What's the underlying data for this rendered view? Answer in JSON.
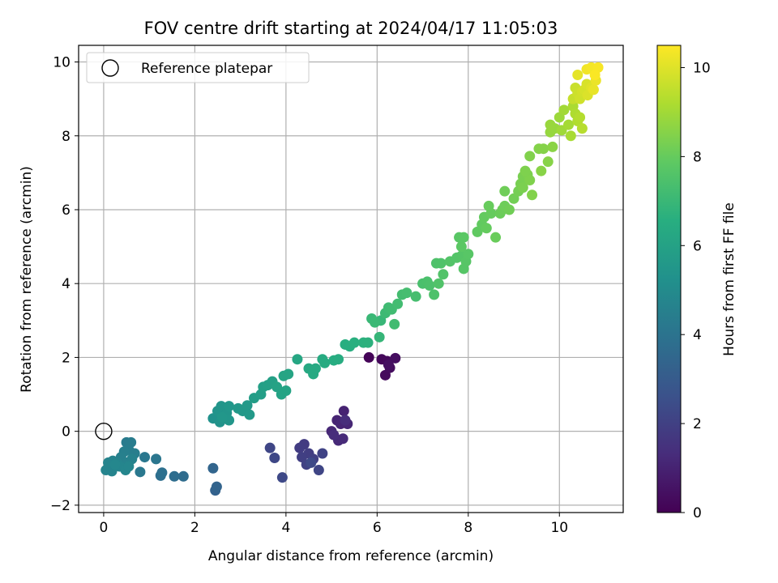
{
  "chart_data": {
    "type": "scatter",
    "title": "FOV centre drift starting at 2024/04/17 11:05:03",
    "xlabel": "Angular distance from reference (arcmin)",
    "ylabel": "Rotation from reference (arcmin)",
    "xlim": [
      -0.55,
      11.4
    ],
    "ylim": [
      -2.2,
      10.45
    ],
    "xticks": [
      "0",
      "2",
      "4",
      "6",
      "8",
      "10"
    ],
    "yticks": [
      "−2",
      "0",
      "2",
      "4",
      "6",
      "8",
      "10"
    ],
    "xtick_values": [
      0,
      2,
      4,
      6,
      8,
      10
    ],
    "ytick_values": [
      -2,
      0,
      2,
      4,
      6,
      8,
      10
    ],
    "grid": true,
    "legend": {
      "position": "upper-left",
      "entries": [
        "Reference platepar"
      ]
    },
    "reference_point": {
      "x": 0,
      "y": 0
    },
    "colorbar": {
      "label": "Hours from first FF file",
      "range": [
        0,
        10.5
      ],
      "ticks": [
        "0",
        "2",
        "4",
        "6",
        "8",
        "10"
      ],
      "tick_values": [
        0,
        2,
        4,
        6,
        8,
        10
      ],
      "colormap": "viridis"
    },
    "points": [
      [
        5.82,
        2.0,
        0.1
      ],
      [
        6.1,
        1.95,
        0.2
      ],
      [
        6.22,
        1.9,
        0.25
      ],
      [
        6.18,
        1.52,
        0.3
      ],
      [
        6.28,
        1.72,
        0.35
      ],
      [
        6.4,
        1.98,
        0.4
      ],
      [
        6.25,
        1.8,
        0.45
      ],
      [
        5.27,
        0.55,
        1.0
      ],
      [
        5.12,
        0.3,
        1.05
      ],
      [
        5.2,
        0.2,
        1.1
      ],
      [
        5.35,
        0.2,
        1.12
      ],
      [
        5.0,
        0.0,
        1.15
      ],
      [
        5.15,
        -0.25,
        1.2
      ],
      [
        5.25,
        -0.2,
        1.25
      ],
      [
        5.05,
        -0.1,
        1.3
      ],
      [
        5.3,
        0.3,
        1.35
      ],
      [
        4.4,
        -0.35,
        1.8
      ],
      [
        4.3,
        -0.45,
        1.85
      ],
      [
        4.5,
        -0.6,
        1.9
      ],
      [
        4.35,
        -0.7,
        1.95
      ],
      [
        4.6,
        -0.75,
        2.0
      ],
      [
        4.45,
        -0.9,
        2.05
      ],
      [
        4.8,
        -0.6,
        2.1
      ],
      [
        4.72,
        -1.05,
        2.15
      ],
      [
        3.65,
        -0.45,
        2.2
      ],
      [
        3.75,
        -0.72,
        2.25
      ],
      [
        3.92,
        -1.25,
        2.3
      ],
      [
        4.55,
        -0.85,
        2.35
      ],
      [
        2.45,
        -1.6,
        3.3
      ],
      [
        2.48,
        -1.5,
        3.35
      ],
      [
        2.4,
        -1.0,
        3.4
      ],
      [
        1.75,
        -1.22,
        3.7
      ],
      [
        1.55,
        -1.22,
        3.75
      ],
      [
        1.25,
        -1.2,
        3.8
      ],
      [
        1.28,
        -1.12,
        3.85
      ],
      [
        1.15,
        -0.75,
        4.1
      ],
      [
        0.9,
        -0.7,
        4.15
      ],
      [
        0.8,
        -1.1,
        4.2
      ],
      [
        0.5,
        -0.3,
        4.3
      ],
      [
        0.6,
        -0.3,
        4.35
      ],
      [
        0.55,
        -0.5,
        4.4
      ],
      [
        0.68,
        -0.6,
        4.45
      ],
      [
        0.45,
        -0.55,
        4.5
      ],
      [
        0.38,
        -0.7,
        4.55
      ],
      [
        0.62,
        -0.75,
        4.6
      ],
      [
        0.52,
        -0.85,
        4.6
      ],
      [
        0.3,
        -0.85,
        4.65
      ],
      [
        0.2,
        -0.8,
        4.65
      ],
      [
        0.1,
        -0.85,
        4.7
      ],
      [
        0.05,
        -1.05,
        4.7
      ],
      [
        0.18,
        -1.08,
        4.72
      ],
      [
        0.35,
        -0.95,
        4.75
      ],
      [
        0.48,
        -1.05,
        4.78
      ],
      [
        0.55,
        -0.95,
        4.8
      ],
      [
        0.25,
        -0.9,
        4.82
      ],
      [
        2.4,
        0.35,
        5.3
      ],
      [
        2.55,
        0.25,
        5.35
      ],
      [
        2.5,
        0.55,
        5.4
      ],
      [
        2.58,
        0.68,
        5.42
      ],
      [
        2.7,
        0.5,
        5.45
      ],
      [
        2.75,
        0.3,
        5.48
      ],
      [
        2.6,
        0.38,
        5.5
      ],
      [
        2.75,
        0.68,
        5.52
      ],
      [
        2.95,
        0.62,
        5.55
      ],
      [
        3.05,
        0.55,
        5.58
      ],
      [
        3.15,
        0.7,
        5.6
      ],
      [
        3.2,
        0.45,
        5.62
      ],
      [
        3.3,
        0.9,
        5.8
      ],
      [
        3.45,
        1.0,
        5.85
      ],
      [
        3.5,
        1.2,
        5.9
      ],
      [
        3.6,
        1.25,
        5.92
      ],
      [
        3.7,
        1.35,
        5.95
      ],
      [
        3.8,
        1.2,
        6.0
      ],
      [
        3.9,
        1.0,
        6.05
      ],
      [
        4.0,
        1.1,
        6.08
      ],
      [
        3.95,
        1.5,
        6.1
      ],
      [
        4.05,
        1.55,
        6.12
      ],
      [
        4.25,
        1.95,
        6.2
      ],
      [
        4.5,
        1.7,
        6.3
      ],
      [
        4.6,
        1.55,
        6.32
      ],
      [
        4.65,
        1.7,
        6.35
      ],
      [
        4.8,
        1.95,
        6.4
      ],
      [
        4.85,
        1.85,
        6.42
      ],
      [
        5.05,
        1.92,
        6.45
      ],
      [
        5.15,
        1.95,
        6.48
      ],
      [
        5.3,
        2.35,
        6.55
      ],
      [
        5.4,
        2.3,
        6.58
      ],
      [
        5.5,
        2.4,
        6.6
      ],
      [
        5.7,
        2.4,
        6.65
      ],
      [
        5.8,
        2.4,
        6.68
      ],
      [
        6.05,
        2.55,
        6.9
      ],
      [
        6.08,
        3.0,
        6.95
      ],
      [
        5.88,
        3.05,
        7.0
      ],
      [
        5.95,
        2.95,
        7.05
      ],
      [
        6.18,
        3.2,
        7.1
      ],
      [
        6.25,
        3.35,
        7.15
      ],
      [
        6.32,
        3.3,
        7.18
      ],
      [
        6.38,
        2.9,
        7.2
      ],
      [
        6.45,
        3.45,
        7.22
      ],
      [
        6.55,
        3.7,
        7.25
      ],
      [
        6.65,
        3.75,
        7.28
      ],
      [
        6.85,
        3.65,
        7.3
      ],
      [
        7.0,
        4.0,
        7.4
      ],
      [
        7.1,
        4.05,
        7.42
      ],
      [
        7.15,
        3.95,
        7.45
      ],
      [
        7.25,
        3.7,
        7.48
      ],
      [
        7.3,
        4.55,
        7.5
      ],
      [
        7.4,
        4.55,
        7.52
      ],
      [
        7.35,
        4.0,
        7.55
      ],
      [
        7.45,
        4.25,
        7.58
      ],
      [
        7.6,
        4.6,
        7.6
      ],
      [
        7.75,
        4.7,
        7.62
      ],
      [
        7.85,
        4.75,
        7.65
      ],
      [
        7.9,
        4.4,
        7.68
      ],
      [
        7.95,
        4.6,
        7.7
      ],
      [
        8.0,
        4.8,
        7.72
      ],
      [
        7.8,
        5.25,
        7.75
      ],
      [
        7.9,
        5.25,
        7.78
      ],
      [
        7.85,
        5.0,
        7.8
      ],
      [
        8.2,
        5.4,
        7.9
      ],
      [
        8.3,
        5.6,
        7.92
      ],
      [
        8.35,
        5.8,
        7.95
      ],
      [
        8.4,
        5.5,
        7.98
      ],
      [
        8.5,
        5.9,
        8.0
      ],
      [
        8.45,
        6.1,
        8.02
      ],
      [
        8.6,
        5.25,
        8.05
      ],
      [
        8.7,
        5.9,
        8.08
      ],
      [
        8.75,
        6.0,
        8.1
      ],
      [
        8.8,
        6.1,
        8.12
      ],
      [
        8.8,
        6.5,
        8.15
      ],
      [
        8.9,
        6.0,
        8.18
      ],
      [
        9.0,
        6.3,
        8.2
      ],
      [
        9.1,
        6.5,
        8.25
      ],
      [
        9.15,
        6.7,
        8.3
      ],
      [
        9.2,
        6.9,
        8.32
      ],
      [
        9.2,
        6.6,
        8.35
      ],
      [
        9.3,
        6.95,
        8.38
      ],
      [
        9.25,
        7.05,
        8.4
      ],
      [
        9.35,
        6.8,
        8.42
      ],
      [
        9.35,
        7.45,
        8.45
      ],
      [
        9.4,
        6.4,
        8.48
      ],
      [
        9.55,
        7.65,
        8.5
      ],
      [
        9.65,
        7.65,
        8.52
      ],
      [
        9.75,
        7.3,
        8.55
      ],
      [
        9.6,
        7.05,
        8.58
      ],
      [
        9.85,
        7.7,
        8.6
      ],
      [
        9.8,
        8.1,
        8.8
      ],
      [
        9.9,
        8.2,
        8.82
      ],
      [
        9.8,
        8.3,
        8.85
      ],
      [
        10.0,
        8.5,
        8.9
      ],
      [
        10.05,
        8.15,
        8.95
      ],
      [
        10.1,
        8.7,
        9.0
      ],
      [
        10.2,
        8.3,
        9.05
      ],
      [
        10.25,
        8.0,
        9.1
      ],
      [
        10.3,
        8.8,
        9.15
      ],
      [
        10.35,
        8.6,
        9.2
      ],
      [
        10.4,
        8.4,
        9.25
      ],
      [
        10.45,
        8.5,
        9.3
      ],
      [
        10.5,
        8.2,
        9.35
      ],
      [
        10.3,
        9.0,
        9.6
      ],
      [
        10.35,
        9.3,
        9.65
      ],
      [
        10.4,
        9.15,
        9.7
      ],
      [
        10.45,
        9.0,
        9.75
      ],
      [
        10.5,
        9.2,
        9.8
      ],
      [
        10.55,
        9.25,
        9.85
      ],
      [
        10.6,
        9.4,
        9.9
      ],
      [
        10.62,
        9.1,
        9.95
      ],
      [
        10.7,
        9.3,
        10.0
      ],
      [
        10.4,
        9.65,
        10.1
      ],
      [
        10.75,
        9.25,
        10.15
      ],
      [
        10.8,
        9.5,
        10.2
      ],
      [
        10.6,
        9.8,
        10.3
      ],
      [
        10.7,
        9.85,
        10.35
      ],
      [
        10.85,
        9.85,
        10.4
      ],
      [
        10.78,
        9.65,
        10.45
      ]
    ]
  }
}
